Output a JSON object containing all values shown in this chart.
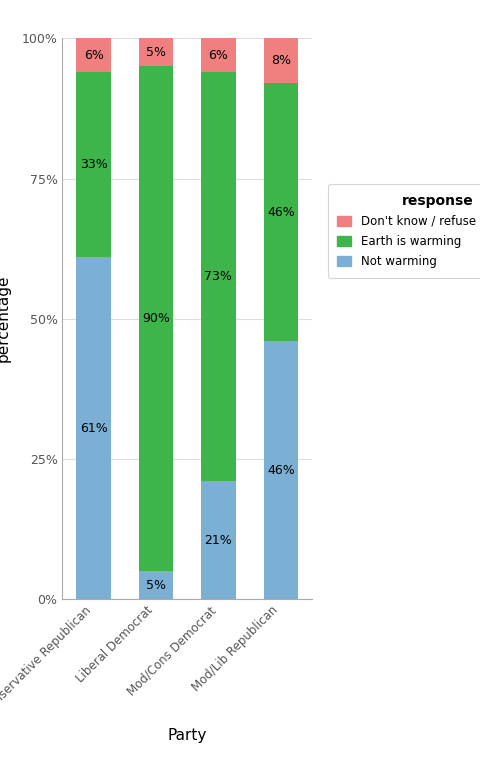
{
  "parties": [
    "Conservative Republican",
    "Liberal Democrat",
    "Mod/Cons Democrat",
    "Mod/Lib Republican"
  ],
  "not_warming": [
    61,
    5,
    21,
    46
  ],
  "earth_warming": [
    33,
    90,
    73,
    46
  ],
  "dont_know": [
    6,
    5,
    6,
    8
  ],
  "colors": {
    "not_warming": "#7BAFD4",
    "earth_warming": "#3DB54A",
    "dont_know": "#F08080"
  },
  "xlabel": "Party",
  "ylabel": "percentage",
  "legend_title": "response",
  "yticks": [
    0,
    25,
    50,
    75,
    100
  ],
  "ytick_labels": [
    "0%",
    "25%",
    "50%",
    "75%",
    "100%"
  ],
  "background_color": "#FFFFFF",
  "bar_width": 0.55
}
